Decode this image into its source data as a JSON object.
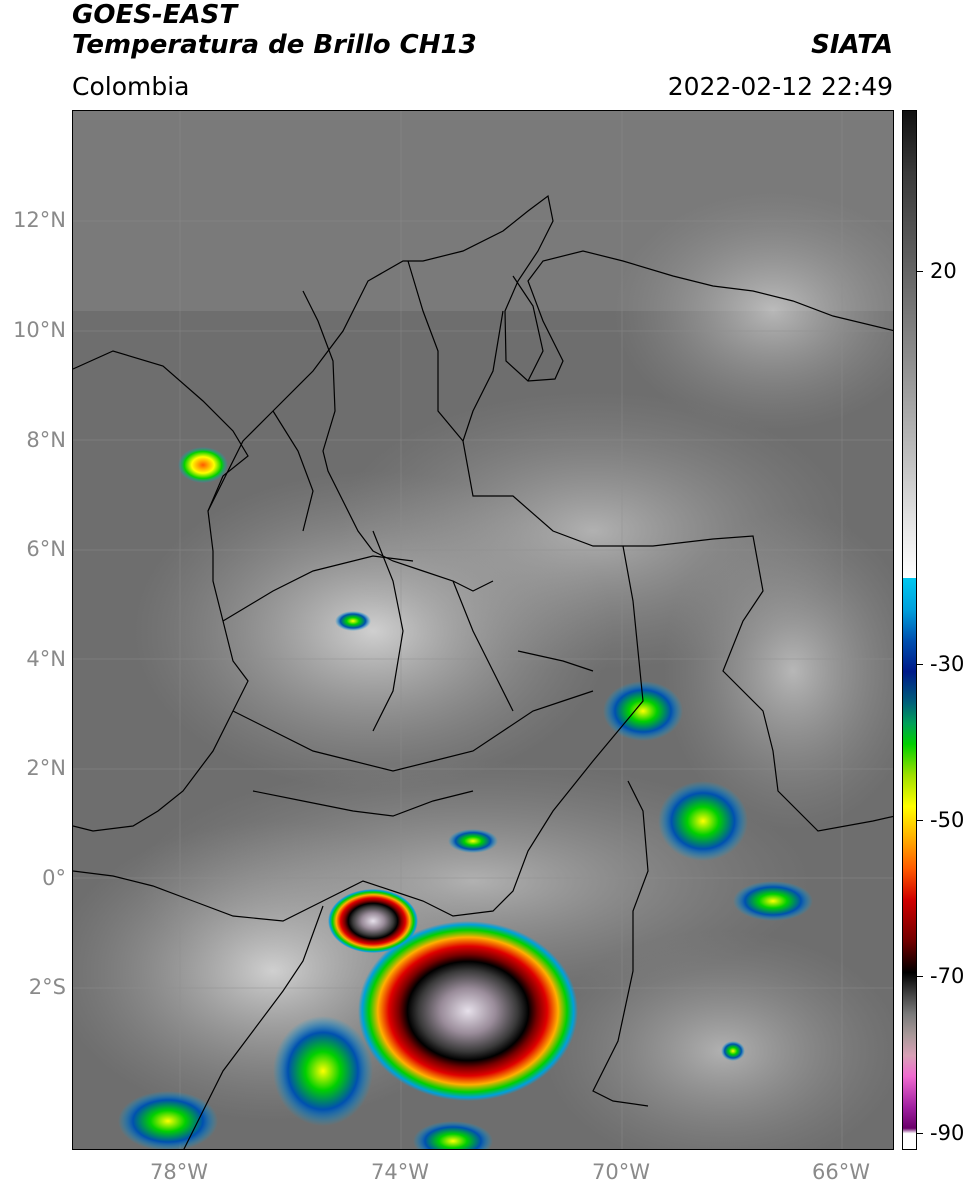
{
  "header": {
    "satellite": "GOES-EAST",
    "product": "Temperatura de Brillo CH13",
    "brand": "SIATA",
    "region": "Colombia",
    "datetime": "2022-02-12 22:49"
  },
  "map": {
    "lat_labels": [
      "12°N",
      "10°N",
      "8°N",
      "6°N",
      "4°N",
      "2°N",
      "0°",
      "2°S"
    ],
    "lon_labels": [
      "78°W",
      "74°W",
      "70°W",
      "66°W"
    ]
  },
  "colorbar": {
    "tick_labels": [
      "20",
      "-30",
      "-50",
      "-70",
      "-90"
    ],
    "colors": {
      "warm": "#ffffff",
      "cold_start": "#00c8f0",
      "mid": "#00d000",
      "hot": "#d00000",
      "extreme": "#f06ad0"
    }
  }
}
